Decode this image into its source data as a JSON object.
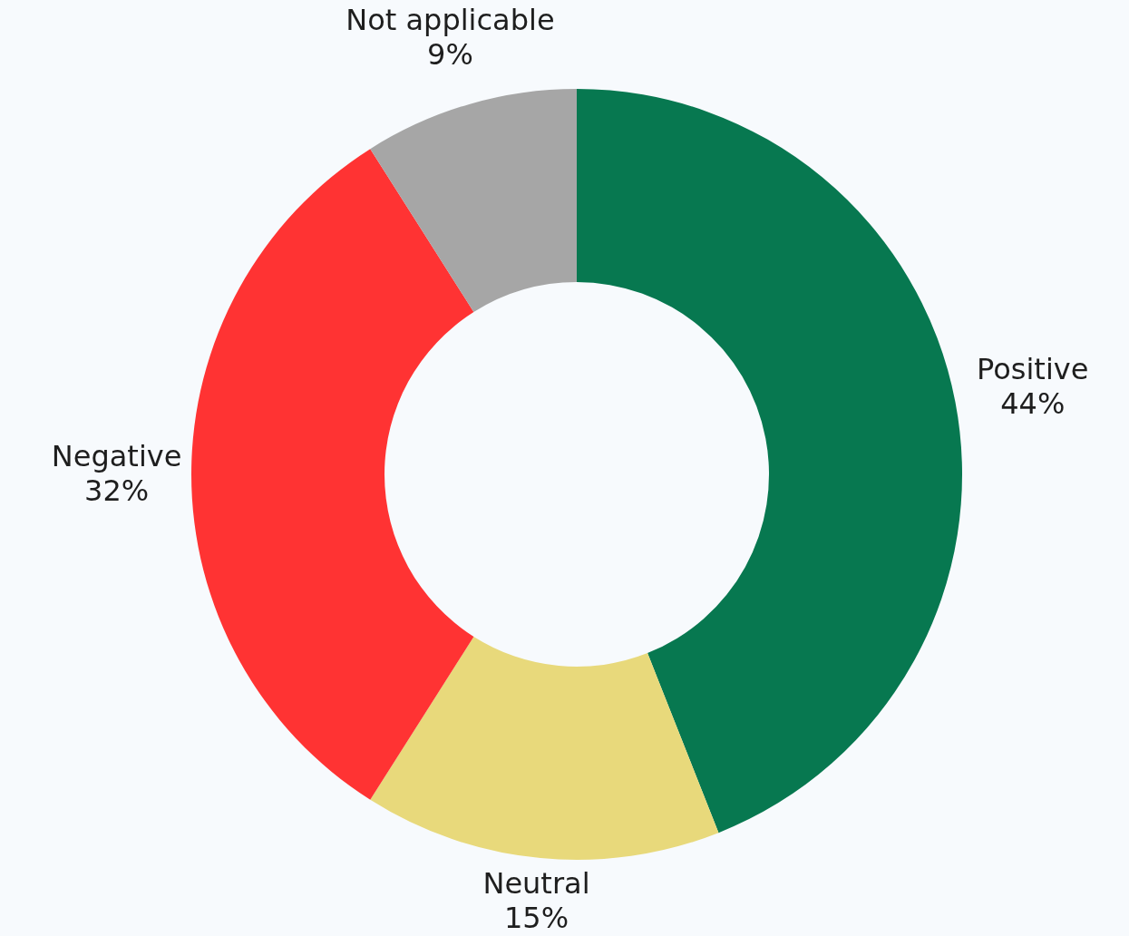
{
  "chart_data": {
    "type": "donut",
    "categories": [
      "Positive",
      "Neutral",
      "Negative",
      "Not applicable"
    ],
    "values": [
      44,
      15,
      32,
      9
    ],
    "value_labels": [
      "44%",
      "15%",
      "32%",
      "9%"
    ],
    "colors": [
      "#077850",
      "#e8d97b",
      "#ff3333",
      "#a6a6a6"
    ],
    "legend": false
  }
}
